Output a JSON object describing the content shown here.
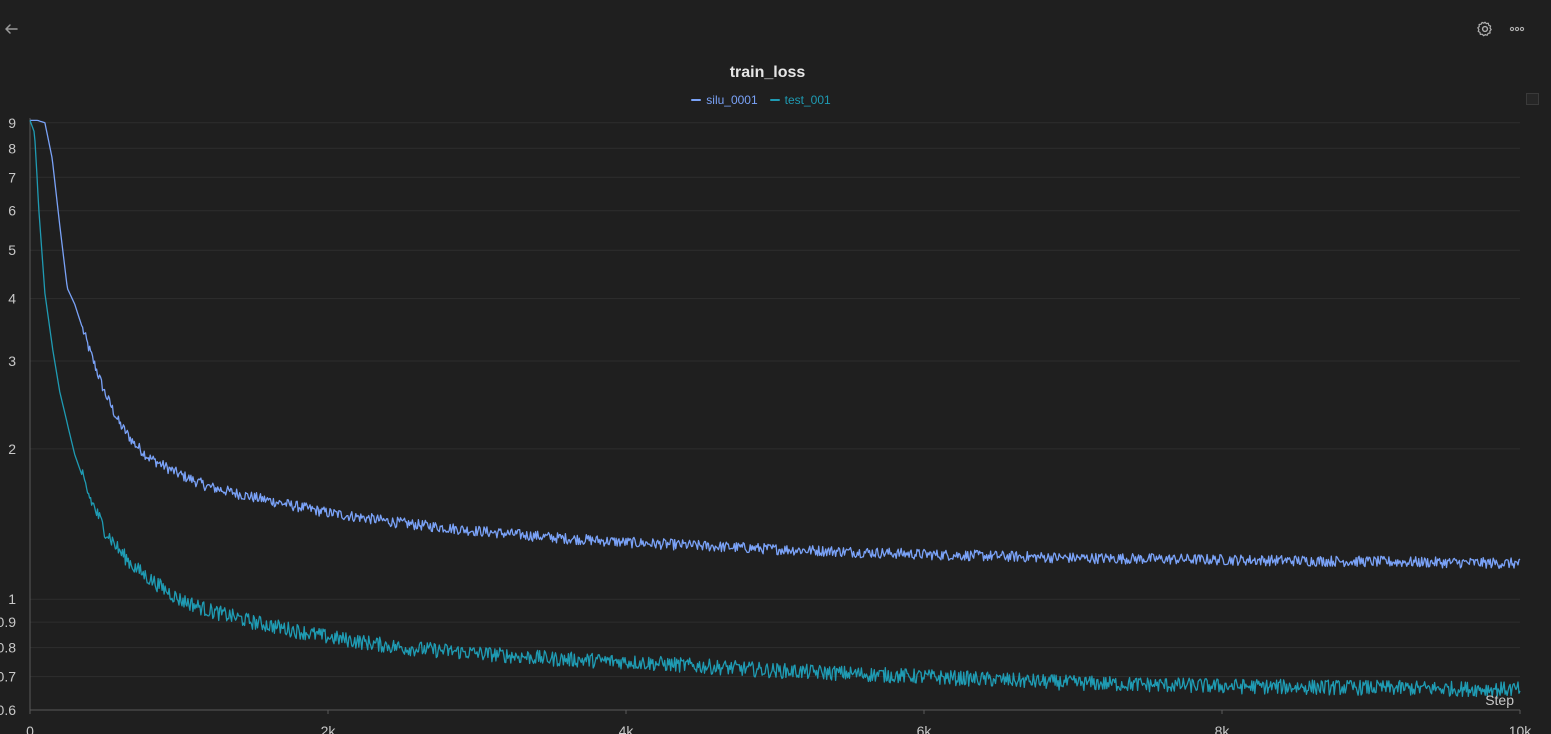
{
  "toolbar": {
    "back_icon": "arrow-left-icon",
    "settings_icon": "gear-icon",
    "more_icon": "ellipsis-icon"
  },
  "chart_data": {
    "type": "line",
    "title": "train_loss",
    "xlabel": "Step",
    "ylabel": "",
    "yscale": "log",
    "xlim": [
      0,
      10000
    ],
    "ylim": [
      0.6,
      9.2
    ],
    "grid": true,
    "legend_position": "top-center",
    "x_ticks": [
      "0",
      "2k",
      "4k",
      "6k",
      "8k",
      "10k"
    ],
    "y_ticks": [
      "9",
      "8",
      "7",
      "6",
      "5",
      "4",
      "3",
      "2",
      "1",
      "0.9",
      "0.8",
      "0.7",
      "0.6"
    ],
    "series": [
      {
        "name": "silu_0001",
        "color": "#7aa2f7",
        "x": [
          0,
          50,
          100,
          150,
          200,
          250,
          300,
          400,
          500,
          600,
          700,
          800,
          1000,
          1200,
          1500,
          2000,
          2500,
          3000,
          3500,
          4000,
          5000,
          6000,
          7000,
          8000,
          9000,
          10000
        ],
        "values": [
          9.1,
          9.1,
          9.0,
          7.6,
          5.6,
          4.2,
          3.9,
          3.15,
          2.6,
          2.25,
          2.05,
          1.92,
          1.78,
          1.68,
          1.6,
          1.49,
          1.42,
          1.37,
          1.33,
          1.3,
          1.26,
          1.23,
          1.21,
          1.2,
          1.19,
          1.18
        ]
      },
      {
        "name": "test_001",
        "color": "#1f9bb3",
        "x": [
          0,
          30,
          60,
          100,
          150,
          200,
          250,
          300,
          400,
          500,
          600,
          700,
          800,
          1000,
          1200,
          1500,
          2000,
          2500,
          3000,
          3500,
          4000,
          5000,
          6000,
          7000,
          8000,
          9000,
          10000
        ],
        "values": [
          9.1,
          8.6,
          6.0,
          4.1,
          3.2,
          2.6,
          2.25,
          1.95,
          1.6,
          1.38,
          1.25,
          1.16,
          1.1,
          1.0,
          0.95,
          0.9,
          0.84,
          0.8,
          0.78,
          0.76,
          0.75,
          0.72,
          0.7,
          0.68,
          0.67,
          0.665,
          0.66
        ]
      }
    ]
  }
}
